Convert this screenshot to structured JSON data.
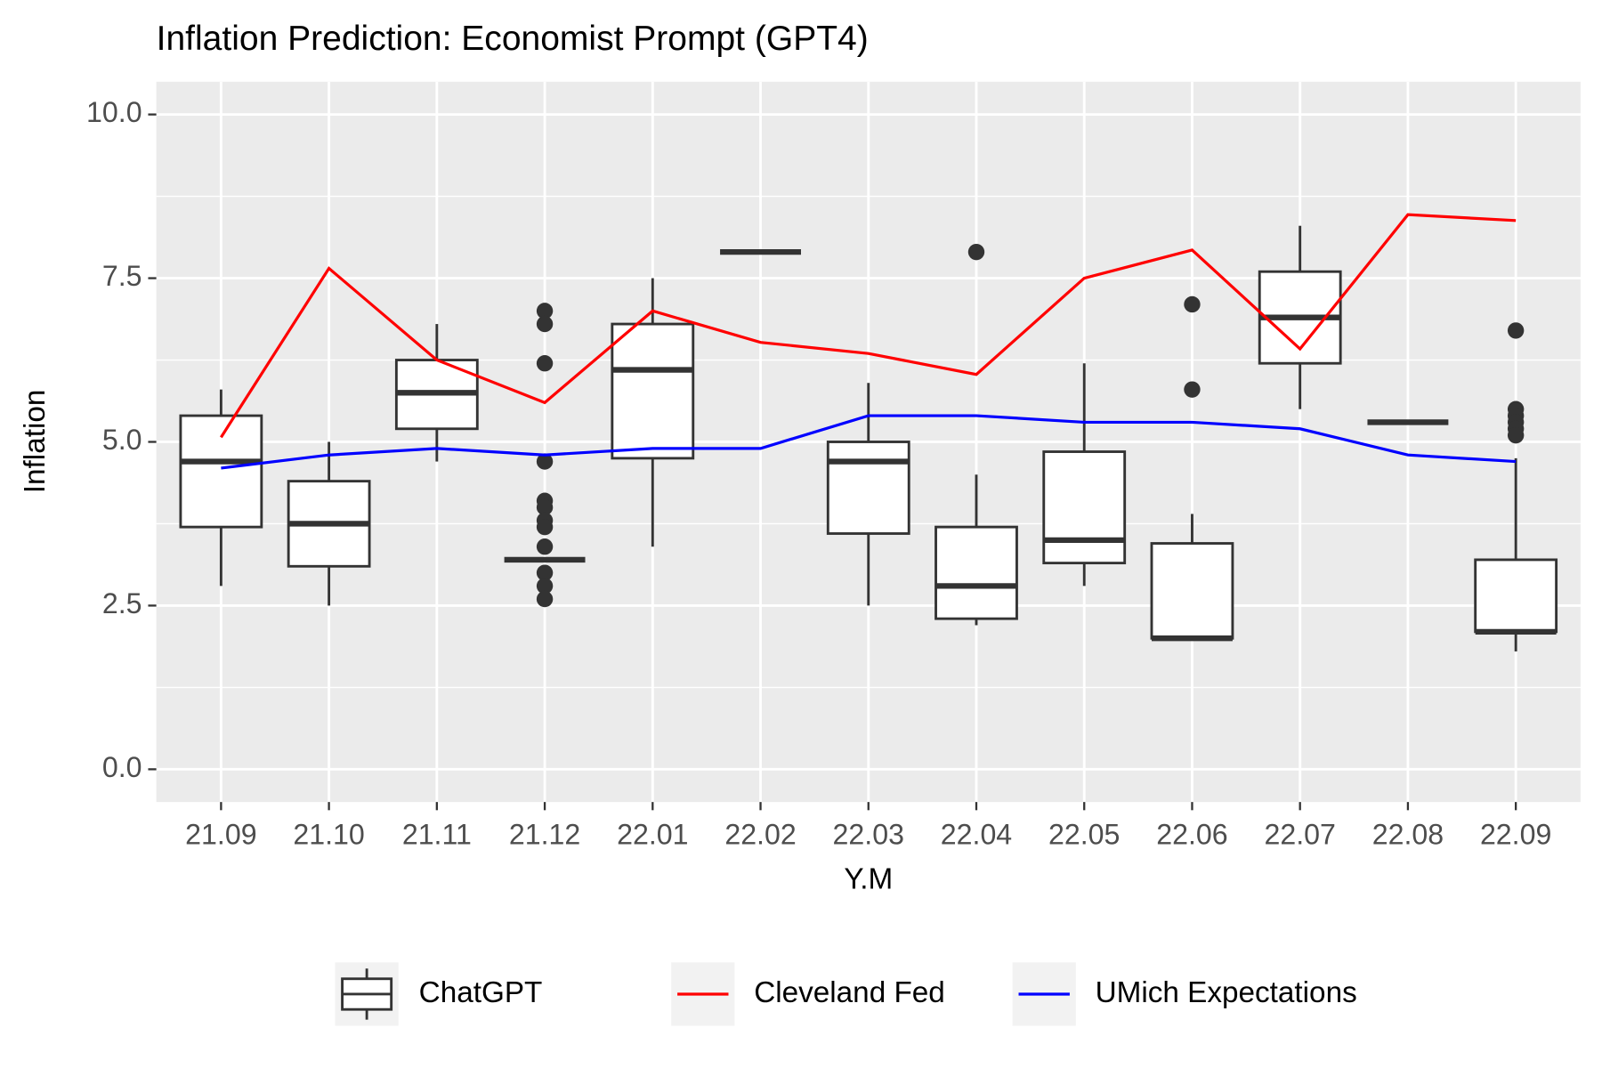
{
  "chart_data": {
    "type": "box",
    "title": "Inflation Prediction: Economist Prompt (GPT4)",
    "x_label": "Y.M",
    "y_label": "Inflation",
    "categories": [
      "21.09",
      "21.10",
      "21.11",
      "21.12",
      "22.01",
      "22.02",
      "22.03",
      "22.04",
      "22.05",
      "22.06",
      "22.07",
      "22.08",
      "22.09"
    ],
    "ylim": [
      -0.5,
      10.5
    ],
    "yticks": [
      {
        "value": 0,
        "label": "0.0"
      },
      {
        "value": 2.5,
        "label": "2.5"
      },
      {
        "value": 5,
        "label": "5.0"
      },
      {
        "value": 7.5,
        "label": "7.5"
      },
      {
        "value": 10,
        "label": "10.0"
      }
    ],
    "grid": true,
    "legend": "bottom",
    "boxes": {
      "name": "ChatGPT",
      "color": "#333333",
      "fill": "#ffffff",
      "whislo": [
        2.8,
        2.5,
        4.7,
        3.2,
        3.4,
        7.9,
        2.5,
        2.2,
        2.8,
        2.0,
        5.5,
        5.3,
        1.8
      ],
      "q1": [
        3.7,
        3.1,
        5.2,
        3.2,
        4.75,
        7.9,
        3.6,
        2.3,
        3.15,
        2.0,
        6.2,
        5.3,
        2.1
      ],
      "median": [
        4.7,
        3.75,
        5.75,
        3.2,
        6.1,
        7.9,
        4.7,
        2.8,
        3.5,
        2.0,
        6.9,
        5.3,
        2.1
      ],
      "q3": [
        5.4,
        4.4,
        6.25,
        3.2,
        6.8,
        7.9,
        5.0,
        3.7,
        4.85,
        3.45,
        7.6,
        5.3,
        3.2
      ],
      "whishi": [
        5.8,
        5.0,
        6.8,
        3.2,
        7.5,
        7.9,
        5.9,
        4.5,
        6.2,
        3.9,
        8.3,
        5.3,
        4.75
      ],
      "outliers": [
        [],
        [],
        [],
        [
          7.0,
          6.8,
          6.2,
          4.7,
          4.1,
          4.0,
          3.8,
          3.7,
          3.4,
          3.0,
          2.8,
          2.6
        ],
        [],
        [],
        [],
        [
          7.9
        ],
        [],
        [
          7.1,
          5.8
        ],
        [],
        [],
        [
          6.7,
          5.5,
          5.4,
          5.3,
          5.2,
          5.1
        ]
      ]
    },
    "series": [
      {
        "name": "Cleveland Fed",
        "color": "#ff0000",
        "values": [
          5.07,
          7.65,
          6.25,
          5.6,
          7.0,
          6.52,
          6.35,
          6.03,
          7.5,
          7.93,
          6.42,
          8.47,
          8.38
        ]
      },
      {
        "name": "UMich Expectations",
        "color": "#0000ff",
        "values": [
          4.6,
          4.8,
          4.9,
          4.8,
          4.9,
          4.9,
          5.4,
          5.4,
          5.3,
          5.3,
          5.2,
          4.8,
          4.7
        ]
      }
    ]
  }
}
